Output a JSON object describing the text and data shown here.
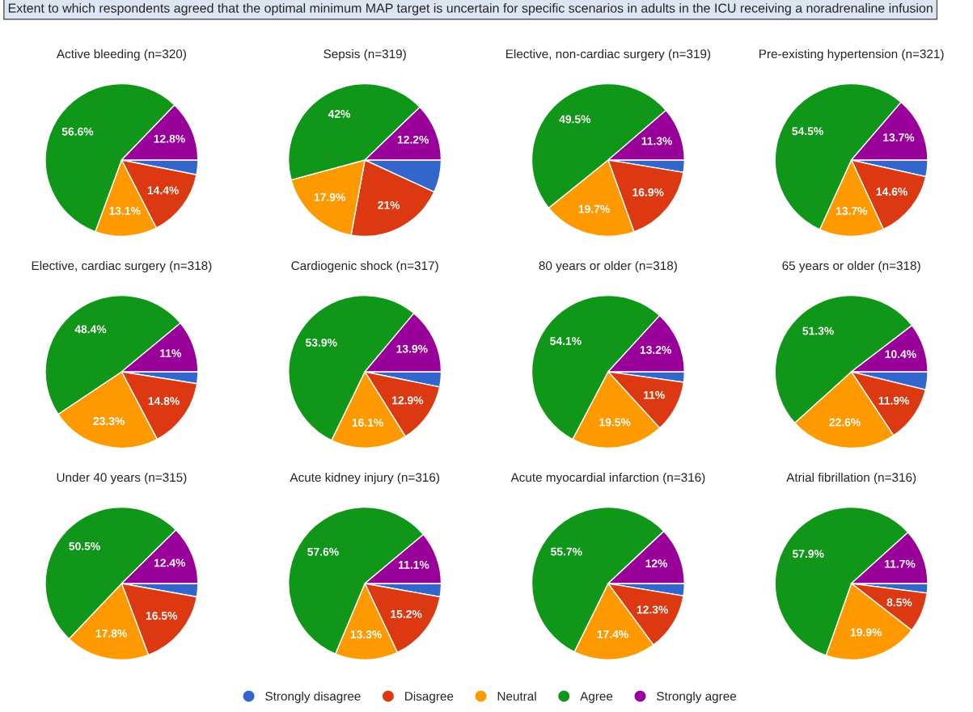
{
  "chart_data": [
    {
      "type": "pie",
      "title": "Active bleeding (n=320)",
      "annotations": [
        "Extent to which respondents agreed that the optimal minimum MAP target is uncertain for specific scenarios in adults in the ICU receiving a noradrenaline infusion"
      ],
      "categories": [
        "Strongly disagree",
        "Disagree",
        "Neutral",
        "Agree",
        "Strongly agree"
      ],
      "colors": [
        "#3366cc",
        "#dc3912",
        "#ff9900",
        "#109618",
        "#990099"
      ],
      "values": [
        3.1,
        14.4,
        13.1,
        56.6,
        12.8
      ],
      "value_labels": [
        null,
        "14.4%",
        "13.1%",
        "56.6%",
        "12.8%"
      ],
      "legend": "bottom"
    },
    {
      "type": "pie",
      "title": "Sepsis (n=319)",
      "categories": [
        null,
        null,
        null,
        null,
        null
      ],
      "colors": [
        "#3366cc",
        "#dc3912",
        "#ff9900",
        "#109618",
        "#990099"
      ],
      "values": [
        6.9,
        21,
        17.9,
        42,
        12.2
      ],
      "value_labels": [
        null,
        "21%",
        "17.9%",
        "42%",
        "12.2%"
      ]
    },
    {
      "type": "pie",
      "title": "Elective, non-cardiac surgery (n=319)",
      "categories": [
        null,
        null,
        null,
        null,
        null
      ],
      "colors": [
        "#3366cc",
        "#dc3912",
        "#ff9900",
        "#109618",
        "#990099"
      ],
      "values": [
        2.6,
        16.9,
        19.7,
        49.5,
        11.3
      ],
      "value_labels": [
        null,
        "16.9%",
        "19.7%",
        "49.5%",
        "11.3%"
      ]
    },
    {
      "type": "pie",
      "title": "Pre-existing hypertension (n=321)",
      "categories": [
        null,
        null,
        null,
        null,
        null
      ],
      "colors": [
        "#3366cc",
        "#dc3912",
        "#ff9900",
        "#109618",
        "#990099"
      ],
      "values": [
        3.5,
        14.6,
        13.7,
        54.5,
        13.7
      ],
      "value_labels": [
        null,
        "14.6%",
        "13.7%",
        "54.5%",
        "13.7%"
      ]
    },
    {
      "type": "pie",
      "title": "Elective, cardiac surgery (n=318)",
      "categories": [
        null,
        null,
        null,
        null,
        null
      ],
      "colors": [
        "#3366cc",
        "#dc3912",
        "#ff9900",
        "#109618",
        "#990099"
      ],
      "values": [
        2.5,
        14.8,
        23.3,
        48.4,
        11
      ],
      "value_labels": [
        null,
        "14.8%",
        "23.3%",
        "48.4%",
        "11%"
      ]
    },
    {
      "type": "pie",
      "title": "Cardiogenic shock (n=317)",
      "categories": [
        null,
        null,
        null,
        null,
        null
      ],
      "colors": [
        "#3366cc",
        "#dc3912",
        "#ff9900",
        "#109618",
        "#990099"
      ],
      "values": [
        3.2,
        12.9,
        16.1,
        53.9,
        13.9
      ],
      "value_labels": [
        null,
        "12.9%",
        "16.1%",
        "53.9%",
        "13.9%"
      ]
    },
    {
      "type": "pie",
      "title": "80 years or older (n=318)",
      "categories": [
        null,
        null,
        null,
        null,
        null
      ],
      "colors": [
        "#3366cc",
        "#dc3912",
        "#ff9900",
        "#109618",
        "#990099"
      ],
      "values": [
        2.2,
        11,
        19.5,
        54.1,
        13.2
      ],
      "value_labels": [
        null,
        "11%",
        "19.5%",
        "54.1%",
        "13.2%"
      ]
    },
    {
      "type": "pie",
      "title": "65 years or older (n=318)",
      "categories": [
        null,
        null,
        null,
        null,
        null
      ],
      "colors": [
        "#3366cc",
        "#dc3912",
        "#ff9900",
        "#109618",
        "#990099"
      ],
      "values": [
        3.8,
        11.9,
        22.6,
        51.3,
        10.4
      ],
      "value_labels": [
        null,
        "11.9%",
        "22.6%",
        "51.3%",
        "10.4%"
      ]
    },
    {
      "type": "pie",
      "title": "Under 40 years (n=315)",
      "categories": [
        null,
        null,
        null,
        null,
        null
      ],
      "colors": [
        "#3366cc",
        "#dc3912",
        "#ff9900",
        "#109618",
        "#990099"
      ],
      "values": [
        2.8,
        16.5,
        17.8,
        50.5,
        12.4
      ],
      "value_labels": [
        null,
        "16.5%",
        "17.8%",
        "50.5%",
        "12.4%"
      ]
    },
    {
      "type": "pie",
      "title": "Acute kidney injury (n=316)",
      "categories": [
        null,
        null,
        null,
        null,
        null
      ],
      "colors": [
        "#3366cc",
        "#dc3912",
        "#ff9900",
        "#109618",
        "#990099"
      ],
      "values": [
        2.8,
        15.2,
        13.3,
        57.6,
        11.1
      ],
      "value_labels": [
        null,
        "15.2%",
        "13.3%",
        "57.6%",
        "11.1%"
      ]
    },
    {
      "type": "pie",
      "title": "Acute myocardial infarction (n=316)",
      "categories": [
        null,
        null,
        null,
        null,
        null
      ],
      "colors": [
        "#3366cc",
        "#dc3912",
        "#ff9900",
        "#109618",
        "#990099"
      ],
      "values": [
        2.6,
        12.3,
        17.4,
        55.7,
        12
      ],
      "value_labels": [
        null,
        "12.3%",
        "17.4%",
        "55.7%",
        "12%"
      ]
    },
    {
      "type": "pie",
      "title": "Atrial fibrillation (n=316)",
      "categories": [
        null,
        null,
        null,
        null,
        null
      ],
      "colors": [
        "#3366cc",
        "#dc3912",
        "#ff9900",
        "#109618",
        "#990099"
      ],
      "values": [
        2.0,
        8.5,
        19.9,
        57.9,
        11.7
      ],
      "value_labels": [
        null,
        "8.5%",
        "19.9%",
        "57.9%",
        "11.7%"
      ]
    }
  ]
}
